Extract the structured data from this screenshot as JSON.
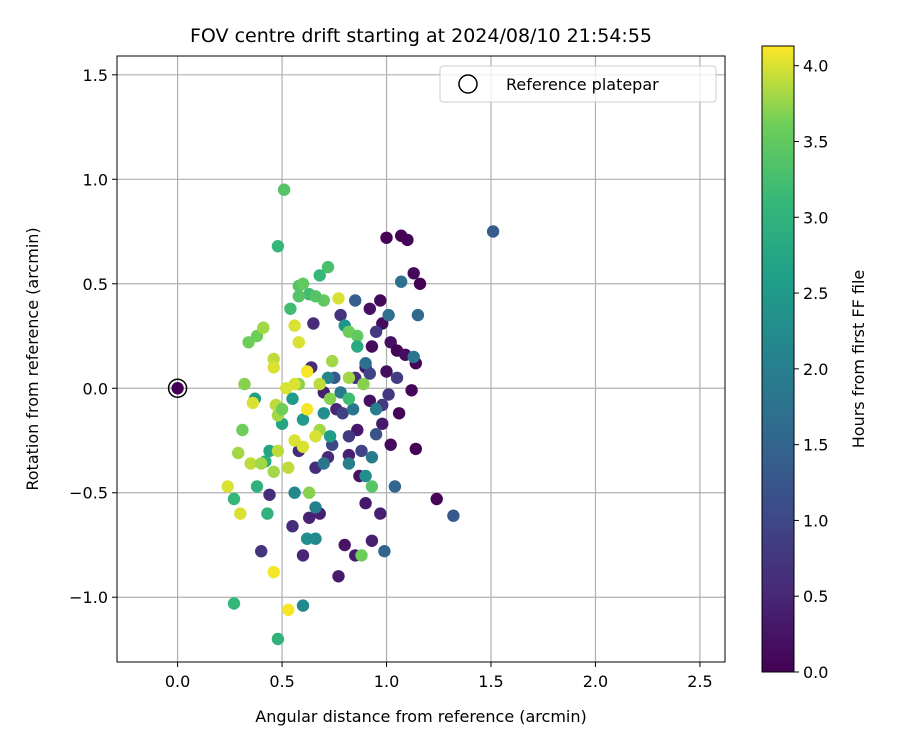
{
  "chart_data": {
    "type": "scatter",
    "title": "FOV centre drift starting at 2024/08/10 21:54:55",
    "xlabel": "Angular distance from reference (arcmin)",
    "ylabel": "Rotation from reference (arcmin)",
    "xlim": [
      -0.29,
      2.62
    ],
    "ylim": [
      -1.31,
      1.59
    ],
    "xticks": [
      0.0,
      0.5,
      1.0,
      1.5,
      2.0,
      2.5
    ],
    "xtick_labels": [
      "0.0",
      "0.5",
      "1.0",
      "1.5",
      "2.0",
      "2.5"
    ],
    "yticks": [
      -1.0,
      -0.5,
      0.0,
      0.5,
      1.0,
      1.5
    ],
    "ytick_labels": [
      "−1.0",
      "−0.5",
      "0.0",
      "0.5",
      "1.0",
      "1.5"
    ],
    "grid": true,
    "legend": {
      "position": "top-right",
      "entries": [
        "Reference platepar"
      ]
    },
    "reference_point": {
      "x": 0.0,
      "y": 0.0
    },
    "colorbar": {
      "label": "Hours from first FF file",
      "colormap": "viridis",
      "range": [
        0.0,
        4.13
      ],
      "ticks": [
        0.0,
        0.5,
        1.0,
        1.5,
        2.0,
        2.5,
        3.0,
        3.5,
        4.0
      ],
      "tick_labels": [
        "0.0",
        "0.5",
        "1.0",
        "1.5",
        "2.0",
        "2.5",
        "3.0",
        "3.5",
        "4.0"
      ]
    },
    "points": [
      [
        1.0,
        0.72,
        0.02
      ],
      [
        1.07,
        0.73,
        0.05
      ],
      [
        1.1,
        0.71,
        0.03
      ],
      [
        1.13,
        0.55,
        0.1
      ],
      [
        1.16,
        0.5,
        0.02
      ],
      [
        0.98,
        0.31,
        0.15
      ],
      [
        0.97,
        0.42,
        0.1
      ],
      [
        0.92,
        0.38,
        0.2
      ],
      [
        1.02,
        0.22,
        0.2
      ],
      [
        1.05,
        0.18,
        0.05
      ],
      [
        1.09,
        0.16,
        0.15
      ],
      [
        1.14,
        0.12,
        0.05
      ],
      [
        1.12,
        -0.01,
        0.08
      ],
      [
        1.0,
        0.08,
        0.18
      ],
      [
        0.93,
        0.2,
        0.12
      ],
      [
        0.9,
        0.1,
        0.25
      ],
      [
        1.06,
        -0.12,
        0.05
      ],
      [
        1.02,
        -0.27,
        0.12
      ],
      [
        0.98,
        -0.17,
        0.35
      ],
      [
        0.92,
        -0.06,
        0.2
      ],
      [
        0.86,
        -0.2,
        0.3
      ],
      [
        0.82,
        -0.32,
        0.4
      ],
      [
        0.87,
        -0.42,
        0.22
      ],
      [
        0.9,
        -0.55,
        0.3
      ],
      [
        0.8,
        -0.75,
        0.25
      ],
      [
        0.77,
        -0.9,
        0.35
      ],
      [
        0.85,
        -0.8,
        0.35
      ],
      [
        0.93,
        -0.73,
        0.4
      ],
      [
        0.97,
        -0.6,
        0.4
      ],
      [
        1.14,
        -0.29,
        0.02
      ],
      [
        1.24,
        -0.53,
        0.05
      ],
      [
        0.68,
        -0.6,
        0.4
      ],
      [
        0.63,
        -0.62,
        0.45
      ],
      [
        0.6,
        -0.8,
        0.5
      ],
      [
        0.66,
        -0.38,
        0.6
      ],
      [
        0.72,
        -0.33,
        0.55
      ],
      [
        0.76,
        -0.1,
        0.5
      ],
      [
        0.7,
        -0.02,
        0.4
      ],
      [
        0.65,
        0.31,
        0.55
      ],
      [
        0.64,
        0.1,
        0.6
      ],
      [
        0.58,
        -0.3,
        0.6
      ],
      [
        0.55,
        -0.66,
        0.6
      ],
      [
        0.44,
        -0.51,
        0.6
      ],
      [
        0.4,
        -0.78,
        0.7
      ],
      [
        0.78,
        0.35,
        0.7
      ],
      [
        0.85,
        0.05,
        0.65
      ],
      [
        0.95,
        0.27,
        0.8
      ],
      [
        0.98,
        -0.08,
        0.8
      ],
      [
        1.01,
        -0.03,
        0.75
      ],
      [
        0.92,
        0.07,
        0.9
      ],
      [
        1.05,
        0.05,
        0.85
      ],
      [
        0.79,
        -0.12,
        0.9
      ],
      [
        0.88,
        -0.3,
        0.95
      ],
      [
        0.82,
        -0.23,
        0.8
      ],
      [
        0.74,
        -0.27,
        1.0
      ],
      [
        1.51,
        0.75,
        1.35
      ],
      [
        1.32,
        -0.61,
        1.3
      ],
      [
        0.85,
        0.42,
        1.4
      ],
      [
        0.75,
        0.05,
        1.3
      ],
      [
        0.95,
        -0.22,
        1.2
      ],
      [
        1.04,
        -0.47,
        1.5
      ],
      [
        0.99,
        -0.78,
        1.5
      ],
      [
        1.01,
        0.35,
        1.7
      ],
      [
        1.07,
        0.51,
        1.7
      ],
      [
        1.15,
        0.35,
        1.6
      ],
      [
        1.13,
        0.15,
        1.8
      ],
      [
        0.9,
        0.12,
        1.7
      ],
      [
        0.93,
        -0.33,
        1.9
      ],
      [
        0.84,
        -0.1,
        1.8
      ],
      [
        0.82,
        -0.36,
        2.0
      ],
      [
        0.78,
        -0.02,
        1.9
      ],
      [
        0.72,
        0.05,
        2.1
      ],
      [
        0.7,
        -0.36,
        1.8
      ],
      [
        0.66,
        -0.57,
        2.0
      ],
      [
        0.6,
        -1.04,
        2.2
      ],
      [
        0.56,
        -0.5,
        2.2
      ],
      [
        0.62,
        -0.72,
        2.3
      ],
      [
        0.66,
        -0.72,
        2.2
      ],
      [
        0.7,
        -0.12,
        2.3
      ],
      [
        0.8,
        0.3,
        2.4
      ],
      [
        0.9,
        -0.42,
        2.3
      ],
      [
        0.95,
        -0.1,
        2.0
      ],
      [
        0.6,
        -0.15,
        2.5
      ],
      [
        0.55,
        -0.05,
        2.5
      ],
      [
        0.5,
        -0.17,
        2.7
      ],
      [
        0.44,
        -0.3,
        2.7
      ],
      [
        0.42,
        -0.35,
        2.9
      ],
      [
        0.37,
        -0.05,
        2.6
      ],
      [
        0.43,
        -0.6,
        3.0
      ],
      [
        0.38,
        -0.47,
        3.0
      ],
      [
        0.27,
        -0.53,
        3.1
      ],
      [
        0.27,
        -1.03,
        3.1
      ],
      [
        0.48,
        -1.2,
        3.0
      ],
      [
        0.48,
        0.68,
        3.1
      ],
      [
        0.51,
        0.95,
        3.4
      ],
      [
        0.54,
        0.38,
        3.2
      ],
      [
        0.63,
        0.45,
        3.2
      ],
      [
        0.68,
        0.54,
        3.1
      ],
      [
        0.72,
        0.58,
        3.3
      ],
      [
        0.7,
        0.42,
        3.5
      ],
      [
        0.66,
        0.44,
        3.4
      ],
      [
        0.58,
        0.44,
        3.4
      ],
      [
        0.58,
        0.49,
        3.4
      ],
      [
        0.6,
        0.5,
        3.5
      ],
      [
        0.38,
        0.25,
        3.6
      ],
      [
        0.34,
        0.22,
        3.6
      ],
      [
        0.41,
        0.29,
        3.8
      ],
      [
        0.82,
        0.27,
        3.6
      ],
      [
        0.86,
        0.25,
        3.5
      ],
      [
        0.82,
        0.05,
        3.8
      ],
      [
        0.74,
        0.13,
        3.8
      ],
      [
        0.58,
        0.02,
        3.7
      ],
      [
        0.47,
        -0.08,
        3.9
      ],
      [
        0.48,
        -0.13,
        3.8
      ],
      [
        0.5,
        -0.1,
        3.6
      ],
      [
        0.46,
        0.14,
        3.9
      ],
      [
        0.46,
        0.1,
        4.0
      ],
      [
        0.52,
        0.0,
        4.0
      ],
      [
        0.56,
        0.3,
        4.0
      ],
      [
        0.58,
        0.22,
        4.0
      ],
      [
        0.62,
        0.08,
        4.1
      ],
      [
        0.68,
        0.02,
        3.9
      ],
      [
        0.56,
        0.02,
        4.0
      ],
      [
        0.32,
        0.02,
        3.7
      ],
      [
        0.31,
        -0.2,
        3.6
      ],
      [
        0.29,
        -0.31,
        3.8
      ],
      [
        0.3,
        -0.6,
        4.0
      ],
      [
        0.24,
        -0.47,
        4.0
      ],
      [
        0.35,
        -0.36,
        3.9
      ],
      [
        0.4,
        -0.36,
        3.8
      ],
      [
        0.46,
        -0.4,
        3.8
      ],
      [
        0.48,
        -0.3,
        3.9
      ],
      [
        0.53,
        -0.38,
        3.9
      ],
      [
        0.56,
        -0.25,
        4.0
      ],
      [
        0.63,
        -0.5,
        3.7
      ],
      [
        0.6,
        -0.28,
        4.0
      ],
      [
        0.62,
        -0.1,
        4.1
      ],
      [
        0.68,
        -0.2,
        3.8
      ],
      [
        0.66,
        -0.23,
        4.0
      ],
      [
        0.73,
        -0.05,
        3.7
      ],
      [
        0.77,
        0.43,
        4.0
      ],
      [
        0.88,
        -0.8,
        3.6
      ],
      [
        0.93,
        -0.47,
        3.4
      ],
      [
        0.46,
        -0.88,
        4.1
      ],
      [
        0.53,
        -1.06,
        4.1
      ],
      [
        0.36,
        -0.07,
        4.0
      ],
      [
        0.89,
        0.02,
        3.7
      ],
      [
        0.82,
        -0.05,
        3.2
      ],
      [
        0.86,
        0.2,
        2.8
      ],
      [
        0.73,
        -0.23,
        2.6
      ]
    ]
  }
}
